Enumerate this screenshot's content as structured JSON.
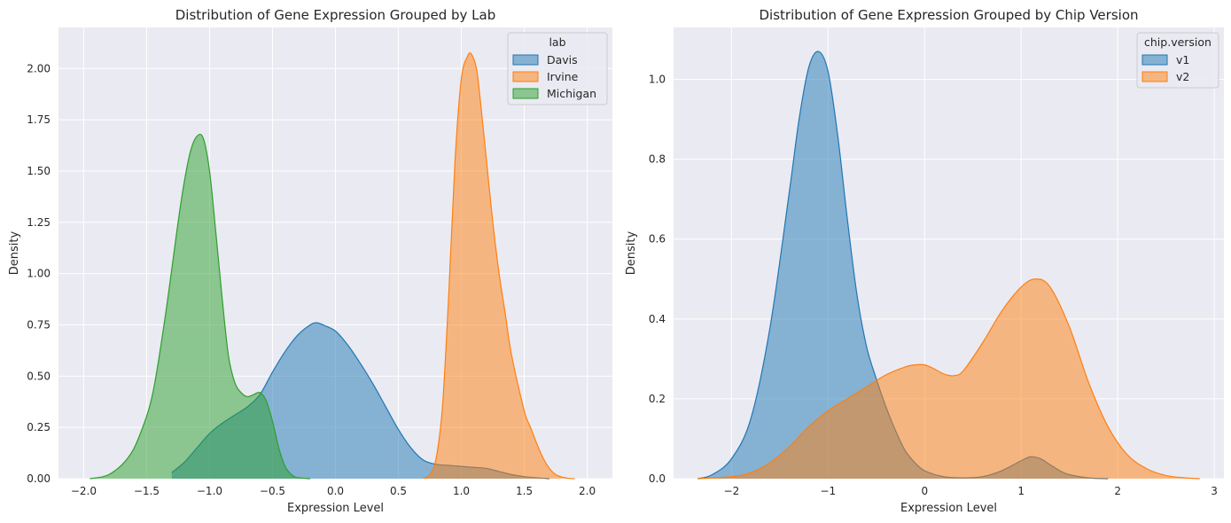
{
  "chart_data": [
    {
      "type": "area",
      "title": "Distribution of Gene Expression Grouped by Lab",
      "xlabel": "Expression Level",
      "ylabel": "Density",
      "xlim": [
        -2.2,
        2.2
      ],
      "ylim": [
        0,
        2.2
      ],
      "xticks": [
        -2.0,
        -1.5,
        -1.0,
        -0.5,
        0.0,
        0.5,
        1.0,
        1.5,
        2.0
      ],
      "xtick_labels": [
        "−2.0",
        "−1.5",
        "−1.0",
        "−0.5",
        "0.0",
        "0.5",
        "1.0",
        "1.5",
        "2.0"
      ],
      "yticks": [
        0.0,
        0.25,
        0.5,
        0.75,
        1.0,
        1.25,
        1.5,
        1.75,
        2.0
      ],
      "ytick_labels": [
        "0.00",
        "0.25",
        "0.50",
        "0.75",
        "1.00",
        "1.25",
        "1.50",
        "1.75",
        "2.00"
      ],
      "grid": true,
      "legend": {
        "title": "lab",
        "placement": "top-right"
      },
      "series": [
        {
          "name": "Davis",
          "color": "#1f77b4",
          "x": [
            -1.3,
            -1.2,
            -1.1,
            -1.0,
            -0.9,
            -0.8,
            -0.7,
            -0.6,
            -0.5,
            -0.4,
            -0.3,
            -0.2,
            -0.15,
            -0.1,
            0.0,
            0.1,
            0.2,
            0.3,
            0.4,
            0.5,
            0.6,
            0.7,
            0.8,
            0.9,
            1.0,
            1.1,
            1.2,
            1.3,
            1.4,
            1.5,
            1.6,
            1.7
          ],
          "y": [
            0.03,
            0.08,
            0.15,
            0.22,
            0.27,
            0.31,
            0.35,
            0.41,
            0.52,
            0.62,
            0.7,
            0.75,
            0.76,
            0.75,
            0.72,
            0.65,
            0.56,
            0.46,
            0.35,
            0.24,
            0.15,
            0.09,
            0.07,
            0.065,
            0.06,
            0.055,
            0.05,
            0.035,
            0.02,
            0.01,
            0.004,
            0.0
          ]
        },
        {
          "name": "Irvine",
          "color": "#ff7f0e",
          "x": [
            0.7,
            0.75,
            0.8,
            0.85,
            0.9,
            0.95,
            1.0,
            1.05,
            1.08,
            1.12,
            1.15,
            1.2,
            1.25,
            1.3,
            1.35,
            1.4,
            1.5,
            1.55,
            1.6,
            1.65,
            1.7,
            1.75,
            1.8,
            1.85,
            1.9
          ],
          "y": [
            0.0,
            0.02,
            0.1,
            0.35,
            0.9,
            1.55,
            1.95,
            2.06,
            2.07,
            2.0,
            1.85,
            1.55,
            1.25,
            1.0,
            0.8,
            0.6,
            0.33,
            0.25,
            0.17,
            0.1,
            0.05,
            0.02,
            0.008,
            0.002,
            0.0
          ]
        },
        {
          "name": "Michigan",
          "color": "#2ca02c",
          "x": [
            -1.95,
            -1.8,
            -1.65,
            -1.55,
            -1.45,
            -1.35,
            -1.25,
            -1.2,
            -1.15,
            -1.1,
            -1.05,
            -1.0,
            -0.95,
            -0.9,
            -0.85,
            -0.8,
            -0.75,
            -0.7,
            -0.65,
            -0.6,
            -0.55,
            -0.5,
            -0.45,
            -0.4,
            -0.35,
            -0.3,
            -0.2
          ],
          "y": [
            0.0,
            0.02,
            0.1,
            0.22,
            0.42,
            0.8,
            1.25,
            1.45,
            1.6,
            1.67,
            1.66,
            1.5,
            1.2,
            0.88,
            0.6,
            0.47,
            0.42,
            0.4,
            0.41,
            0.42,
            0.38,
            0.28,
            0.15,
            0.06,
            0.02,
            0.005,
            0.0
          ]
        }
      ]
    },
    {
      "type": "area",
      "title": "Distribution of Gene Expression Grouped by Chip Version",
      "xlabel": "Expression Level",
      "ylabel": "Density",
      "xlim": [
        -2.6,
        3.1
      ],
      "ylim": [
        0,
        1.13
      ],
      "xticks": [
        -2,
        -1,
        0,
        1,
        2,
        3
      ],
      "xtick_labels": [
        "−2",
        "−1",
        "0",
        "1",
        "2",
        "3"
      ],
      "yticks": [
        0.0,
        0.2,
        0.4,
        0.6,
        0.8,
        1.0
      ],
      "ytick_labels": [
        "0.0",
        "0.2",
        "0.4",
        "0.6",
        "0.8",
        "1.0"
      ],
      "grid": true,
      "legend": {
        "title": "chip.version",
        "placement": "top-right"
      },
      "series": [
        {
          "name": "v1",
          "color": "#1f77b4",
          "x": [
            -2.35,
            -2.2,
            -2.0,
            -1.8,
            -1.6,
            -1.4,
            -1.3,
            -1.2,
            -1.1,
            -1.0,
            -0.9,
            -0.8,
            -0.7,
            -0.6,
            -0.5,
            -0.4,
            -0.3,
            -0.2,
            -0.1,
            0.0,
            0.2,
            0.4,
            0.6,
            0.8,
            1.0,
            1.1,
            1.2,
            1.3,
            1.4,
            1.5,
            1.7,
            1.9
          ],
          "y": [
            0.0,
            0.01,
            0.05,
            0.15,
            0.38,
            0.72,
            0.9,
            1.03,
            1.07,
            1.02,
            0.86,
            0.65,
            0.46,
            0.33,
            0.25,
            0.18,
            0.12,
            0.07,
            0.04,
            0.02,
            0.005,
            0.002,
            0.005,
            0.02,
            0.045,
            0.055,
            0.05,
            0.035,
            0.02,
            0.01,
            0.002,
            0.0
          ]
        },
        {
          "name": "v2",
          "color": "#ff7f0e",
          "x": [
            -2.35,
            -2.0,
            -1.8,
            -1.6,
            -1.4,
            -1.2,
            -1.0,
            -0.8,
            -0.6,
            -0.4,
            -0.2,
            -0.1,
            0.0,
            0.1,
            0.2,
            0.3,
            0.4,
            0.6,
            0.8,
            1.0,
            1.15,
            1.3,
            1.5,
            1.7,
            1.9,
            2.1,
            2.3,
            2.5,
            2.7,
            2.85
          ],
          "y": [
            0.0,
            0.005,
            0.015,
            0.04,
            0.08,
            0.13,
            0.17,
            0.2,
            0.23,
            0.26,
            0.28,
            0.285,
            0.285,
            0.275,
            0.262,
            0.258,
            0.27,
            0.34,
            0.42,
            0.48,
            0.5,
            0.48,
            0.38,
            0.24,
            0.13,
            0.06,
            0.025,
            0.008,
            0.002,
            0.0
          ]
        }
      ]
    }
  ]
}
